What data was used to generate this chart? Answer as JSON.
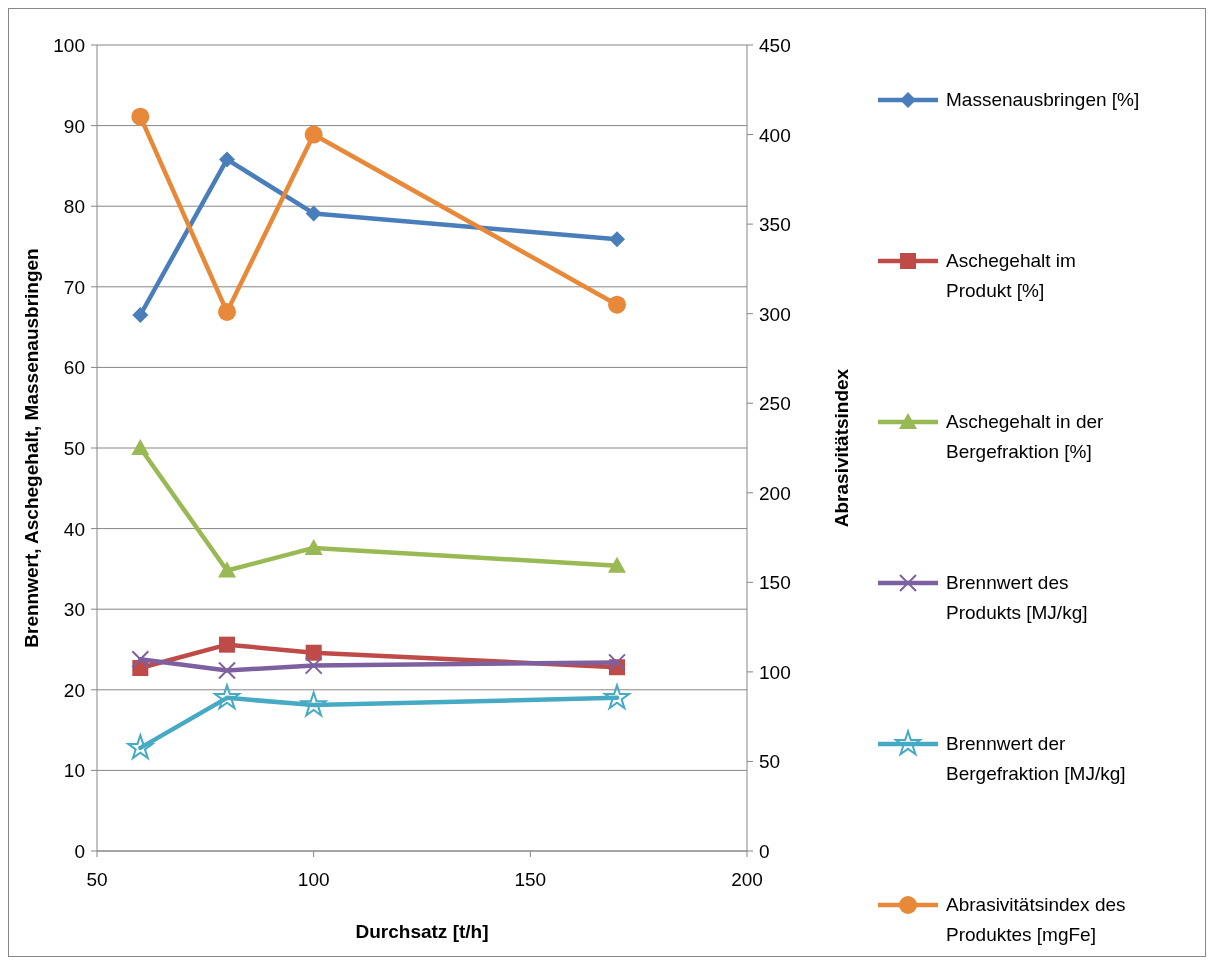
{
  "chart_data": {
    "type": "line",
    "xlabel": "Durchsatz [t/h]",
    "ylabel": "Brennwert, Aschegehalt, Massenausbringen",
    "y2label": "Abrasivitätsindex",
    "x": [
      60,
      80,
      100,
      170
    ],
    "xlim": [
      50,
      200
    ],
    "xticks": [
      50,
      100,
      150,
      200
    ],
    "ylim": [
      0,
      100
    ],
    "yticks": [
      0,
      10,
      20,
      30,
      40,
      50,
      60,
      70,
      80,
      90,
      100
    ],
    "y2lim": [
      0,
      450
    ],
    "y2ticks": [
      0,
      50,
      100,
      150,
      200,
      250,
      300,
      350,
      400,
      450
    ],
    "grid": "y",
    "legend": "right",
    "series": [
      {
        "name": "Massenausbringen [%]",
        "color": "#4a7ebb",
        "marker": "diamond",
        "values": [
          66.5,
          85.8,
          79.1,
          75.9
        ]
      },
      {
        "name": "Aschegehalt im Produkt [%]",
        "color": "#be4b48",
        "marker": "square",
        "values": [
          22.7,
          25.6,
          24.6,
          22.8
        ]
      },
      {
        "name": "Aschegehalt in der Bergefraktion [%]",
        "color": "#98b954",
        "marker": "triangle",
        "values": [
          50,
          34.8,
          37.6,
          35.4
        ]
      },
      {
        "name": "Brennwert des Produkts [MJ/kg]",
        "color": "#7d60a0",
        "marker": "cross",
        "values": [
          23.8,
          22.4,
          23,
          23.4
        ]
      },
      {
        "name": "Brennwert der Bergefraktion [MJ/kg]",
        "color": "#46aac5",
        "marker": "star",
        "values": [
          12.8,
          19,
          18.1,
          19
        ]
      },
      {
        "name": "Abrasivitätsindex des Produktes [mgFe]",
        "color": "#e8893a",
        "marker": "circle",
        "axis": "y2",
        "values": [
          410,
          301,
          400,
          305
        ]
      }
    ]
  }
}
